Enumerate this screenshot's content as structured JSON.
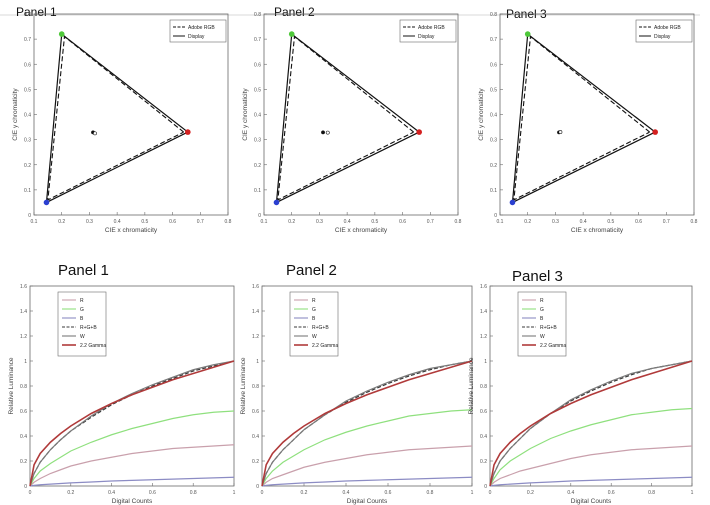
{
  "chart_data": [
    {
      "type": "line",
      "panel_label": "Panel 1",
      "xlabel": "CIE x chromaticity",
      "ylabel": "CIE y chromaticity",
      "xlim": [
        0.1,
        0.8
      ],
      "ylim": [
        0,
        0.8
      ],
      "xticks": [
        "0.1",
        "0.2",
        "0.3",
        "0.4",
        "0.5",
        "0.6",
        "0.7",
        "0.8"
      ],
      "yticks": [
        "0",
        "0.1",
        "0.2",
        "0.3",
        "0.4",
        "0.5",
        "0.6",
        "0.7",
        "0.8"
      ],
      "legend": "top-right",
      "legend_entries": [
        "Adobe RGB",
        "Display"
      ],
      "series": [
        {
          "name": "Adobe RGB",
          "points": [
            [
              0.64,
              0.33
            ],
            [
              0.21,
              0.71
            ],
            [
              0.15,
              0.06
            ]
          ],
          "style": "dashed"
        },
        {
          "name": "Display",
          "points": [
            [
              0.655,
              0.33
            ],
            [
              0.2,
              0.72
            ],
            [
              0.145,
              0.05
            ]
          ],
          "style": "solid"
        }
      ],
      "primaries": [
        {
          "color": "#d42020",
          "x": 0.655,
          "y": 0.33
        },
        {
          "color": "#4ec83a",
          "x": 0.2,
          "y": 0.72
        },
        {
          "color": "#2a3fd0",
          "x": 0.145,
          "y": 0.05
        }
      ],
      "white_points": [
        [
          0.313,
          0.329
        ],
        [
          0.32,
          0.325
        ]
      ]
    },
    {
      "type": "line",
      "panel_label": "Panel 2",
      "xlabel": "CIE x chromaticity",
      "ylabel": "CIE y chromaticity",
      "xlim": [
        0.1,
        0.8
      ],
      "ylim": [
        0,
        0.8
      ],
      "xticks": [
        "0.1",
        "0.2",
        "0.3",
        "0.4",
        "0.5",
        "0.6",
        "0.7",
        "0.8"
      ],
      "yticks": [
        "0",
        "0.1",
        "0.2",
        "0.3",
        "0.4",
        "0.5",
        "0.6",
        "0.7",
        "0.8"
      ],
      "legend": "top-right",
      "legend_entries": [
        "Adobe RGB",
        "Display"
      ],
      "series": [
        {
          "name": "Adobe RGB",
          "points": [
            [
              0.64,
              0.33
            ],
            [
              0.21,
              0.71
            ],
            [
              0.15,
              0.06
            ]
          ],
          "style": "dashed"
        },
        {
          "name": "Display",
          "points": [
            [
              0.66,
              0.33
            ],
            [
              0.2,
              0.72
            ],
            [
              0.145,
              0.05
            ]
          ],
          "style": "solid"
        }
      ],
      "primaries": [
        {
          "color": "#d42020",
          "x": 0.66,
          "y": 0.33
        },
        {
          "color": "#4ec83a",
          "x": 0.2,
          "y": 0.72
        },
        {
          "color": "#2a3fd0",
          "x": 0.145,
          "y": 0.05
        }
      ],
      "white_points": [
        [
          0.313,
          0.329
        ],
        [
          0.33,
          0.328
        ]
      ]
    },
    {
      "type": "line",
      "panel_label": "Panel 3",
      "xlabel": "CIE x chromaticity",
      "ylabel": "CIE y chromaticity",
      "xlim": [
        0.1,
        0.8
      ],
      "ylim": [
        0,
        0.8
      ],
      "xticks": [
        "0.1",
        "0.2",
        "0.3",
        "0.4",
        "0.5",
        "0.6",
        "0.7",
        "0.8"
      ],
      "yticks": [
        "0",
        "0.1",
        "0.2",
        "0.3",
        "0.4",
        "0.5",
        "0.6",
        "0.7",
        "0.8"
      ],
      "legend": "top-right",
      "legend_entries": [
        "Adobe RGB",
        "Display"
      ],
      "series": [
        {
          "name": "Adobe RGB",
          "points": [
            [
              0.64,
              0.33
            ],
            [
              0.21,
              0.71
            ],
            [
              0.15,
              0.06
            ]
          ],
          "style": "dashed"
        },
        {
          "name": "Display",
          "points": [
            [
              0.66,
              0.33
            ],
            [
              0.2,
              0.72
            ],
            [
              0.145,
              0.05
            ]
          ],
          "style": "solid"
        }
      ],
      "primaries": [
        {
          "color": "#d42020",
          "x": 0.66,
          "y": 0.33
        },
        {
          "color": "#4ec83a",
          "x": 0.2,
          "y": 0.72
        },
        {
          "color": "#2a3fd0",
          "x": 0.145,
          "y": 0.05
        }
      ],
      "white_points": [
        [
          0.313,
          0.329
        ],
        [
          0.318,
          0.33
        ]
      ]
    },
    {
      "type": "line",
      "panel_label": "Panel 1",
      "xlabel": "Digital Counts",
      "ylabel": "Relative Luminance",
      "xlim": [
        0,
        1
      ],
      "ylim": [
        0,
        1.6
      ],
      "xticks": [
        "0",
        "0.2",
        "0.4",
        "0.6",
        "0.8",
        "1"
      ],
      "yticks": [
        "0",
        "0.2",
        "0.4",
        "0.6",
        "0.8",
        "1",
        "1.2",
        "1.4",
        "1.6"
      ],
      "legend": "top-left",
      "legend_entries": [
        "R",
        "G",
        "B",
        "R+G+B",
        "W",
        "2.2 Gamma"
      ],
      "x": [
        0,
        0.02,
        0.05,
        0.1,
        0.15,
        0.2,
        0.3,
        0.4,
        0.5,
        0.6,
        0.7,
        0.8,
        0.9,
        1.0
      ],
      "series": [
        {
          "name": "R",
          "values": [
            0,
            0.03,
            0.06,
            0.1,
            0.13,
            0.16,
            0.2,
            0.23,
            0.26,
            0.28,
            0.3,
            0.31,
            0.32,
            0.33
          ]
        },
        {
          "name": "G",
          "values": [
            0,
            0.06,
            0.12,
            0.18,
            0.23,
            0.28,
            0.35,
            0.41,
            0.46,
            0.5,
            0.54,
            0.57,
            0.59,
            0.6
          ]
        },
        {
          "name": "B",
          "values": [
            0,
            0.005,
            0.01,
            0.015,
            0.02,
            0.025,
            0.032,
            0.04,
            0.045,
            0.05,
            0.055,
            0.06,
            0.065,
            0.07
          ]
        },
        {
          "name": "R+G+B",
          "values": [
            0,
            0.1,
            0.19,
            0.29,
            0.37,
            0.44,
            0.55,
            0.65,
            0.73,
            0.8,
            0.86,
            0.92,
            0.96,
            1.0
          ]
        },
        {
          "name": "W",
          "values": [
            0,
            0.1,
            0.19,
            0.29,
            0.37,
            0.44,
            0.56,
            0.66,
            0.74,
            0.81,
            0.87,
            0.93,
            0.97,
            1.0
          ]
        },
        {
          "name": "2.2 Gamma",
          "values": [
            0,
            0.17,
            0.26,
            0.35,
            0.42,
            0.48,
            0.58,
            0.66,
            0.73,
            0.79,
            0.85,
            0.9,
            0.95,
            1.0
          ]
        }
      ]
    },
    {
      "type": "line",
      "panel_label": "Panel 2",
      "xlabel": "Digital Counts",
      "ylabel": "Relative Luminance",
      "xlim": [
        0,
        1
      ],
      "ylim": [
        0,
        1.6
      ],
      "xticks": [
        "0",
        "0.2",
        "0.4",
        "0.6",
        "0.8",
        "1"
      ],
      "yticks": [
        "0",
        "0.2",
        "0.4",
        "0.6",
        "0.8",
        "1",
        "1.2",
        "1.4",
        "1.6"
      ],
      "legend": "top-left",
      "legend_entries": [
        "R",
        "G",
        "B",
        "R+G+B",
        "W",
        "2.2 Gamma"
      ],
      "x": [
        0,
        0.02,
        0.05,
        0.1,
        0.15,
        0.2,
        0.3,
        0.4,
        0.5,
        0.6,
        0.7,
        0.8,
        0.9,
        1.0
      ],
      "series": [
        {
          "name": "R",
          "values": [
            0,
            0.03,
            0.06,
            0.09,
            0.12,
            0.15,
            0.19,
            0.22,
            0.25,
            0.27,
            0.29,
            0.3,
            0.31,
            0.32
          ]
        },
        {
          "name": "G",
          "values": [
            0,
            0.06,
            0.12,
            0.19,
            0.24,
            0.29,
            0.37,
            0.43,
            0.48,
            0.52,
            0.56,
            0.58,
            0.6,
            0.61
          ]
        },
        {
          "name": "B",
          "values": [
            0,
            0.005,
            0.01,
            0.015,
            0.02,
            0.025,
            0.032,
            0.04,
            0.045,
            0.05,
            0.055,
            0.06,
            0.065,
            0.07
          ]
        },
        {
          "name": "R+G+B",
          "values": [
            0,
            0.1,
            0.19,
            0.29,
            0.37,
            0.45,
            0.57,
            0.67,
            0.75,
            0.82,
            0.88,
            0.93,
            0.97,
            1.0
          ]
        },
        {
          "name": "W",
          "values": [
            0,
            0.1,
            0.19,
            0.29,
            0.37,
            0.45,
            0.57,
            0.68,
            0.76,
            0.83,
            0.89,
            0.94,
            0.97,
            1.0
          ]
        },
        {
          "name": "2.2 Gamma",
          "values": [
            0,
            0.17,
            0.26,
            0.35,
            0.42,
            0.48,
            0.58,
            0.66,
            0.73,
            0.79,
            0.85,
            0.9,
            0.95,
            1.0
          ]
        }
      ]
    },
    {
      "type": "line",
      "panel_label": "Panel 3",
      "xlabel": "Digital Counts",
      "ylabel": "Relative Luminance",
      "xlim": [
        0,
        1
      ],
      "ylim": [
        0,
        1.6
      ],
      "xticks": [
        "0",
        "0.2",
        "0.4",
        "0.6",
        "0.8",
        "1"
      ],
      "yticks": [
        "0",
        "0.2",
        "0.4",
        "0.6",
        "0.8",
        "1",
        "1.2",
        "1.4",
        "1.6"
      ],
      "legend": "top-left",
      "legend_entries": [
        "R",
        "G",
        "B",
        "R+G+B",
        "W",
        "2.2 Gamma"
      ],
      "x": [
        0,
        0.02,
        0.05,
        0.1,
        0.15,
        0.2,
        0.3,
        0.4,
        0.5,
        0.6,
        0.7,
        0.8,
        0.9,
        1.0
      ],
      "series": [
        {
          "name": "R",
          "values": [
            0,
            0.03,
            0.06,
            0.09,
            0.12,
            0.14,
            0.18,
            0.22,
            0.25,
            0.27,
            0.29,
            0.3,
            0.31,
            0.32
          ]
        },
        {
          "name": "G",
          "values": [
            0,
            0.06,
            0.13,
            0.2,
            0.25,
            0.3,
            0.38,
            0.44,
            0.49,
            0.53,
            0.57,
            0.59,
            0.61,
            0.62
          ]
        },
        {
          "name": "B",
          "values": [
            0,
            0.005,
            0.01,
            0.015,
            0.02,
            0.025,
            0.032,
            0.04,
            0.045,
            0.05,
            0.055,
            0.06,
            0.065,
            0.07
          ]
        },
        {
          "name": "R+G+B",
          "values": [
            0,
            0.1,
            0.2,
            0.3,
            0.38,
            0.46,
            0.58,
            0.68,
            0.76,
            0.83,
            0.89,
            0.94,
            0.97,
            1.0
          ]
        },
        {
          "name": "W",
          "values": [
            0,
            0.1,
            0.2,
            0.3,
            0.38,
            0.46,
            0.58,
            0.69,
            0.77,
            0.84,
            0.9,
            0.94,
            0.97,
            1.0
          ]
        },
        {
          "name": "2.2 Gamma",
          "values": [
            0,
            0.17,
            0.26,
            0.35,
            0.42,
            0.48,
            0.58,
            0.66,
            0.73,
            0.79,
            0.85,
            0.9,
            0.95,
            1.0
          ]
        }
      ]
    }
  ],
  "colors": {
    "R": "#c9a0ac",
    "G": "#8fe07e",
    "B": "#8c8cc4",
    "R+G+B": "#3a3a3a",
    "W": "#7a7a7a",
    "2.2 Gamma": "#b03a3a"
  }
}
